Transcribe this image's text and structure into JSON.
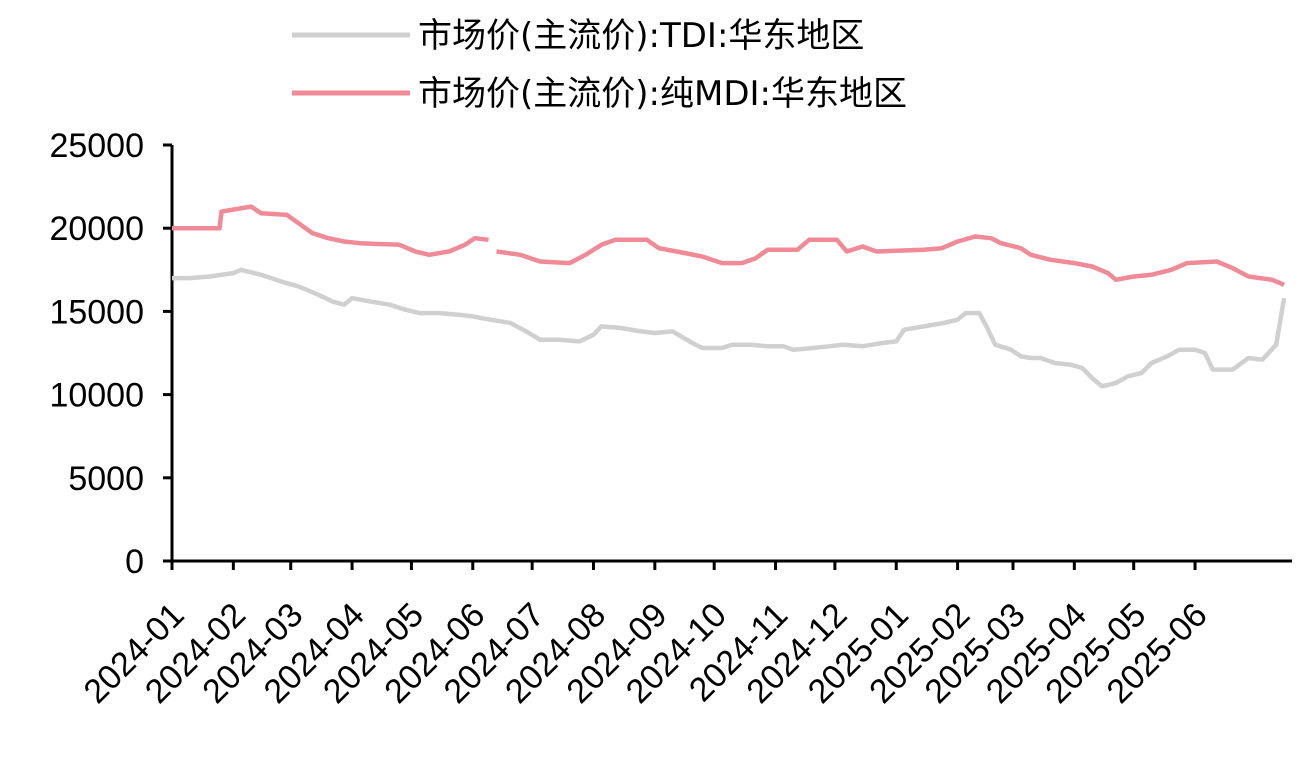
{
  "chart_data": {
    "type": "line",
    "ylim": [
      0,
      25000
    ],
    "yticks": [
      0,
      5000,
      10000,
      15000,
      20000,
      25000
    ],
    "x_ticks": [
      "2024-01",
      "2024-02",
      "2024-03",
      "2024-04",
      "2024-05",
      "2024-06",
      "2024-07",
      "2024-08",
      "2024-09",
      "2024-10",
      "2024-11",
      "2024-12",
      "2025-01",
      "2025-02",
      "2025-03",
      "2025-04",
      "2025-05",
      "2025-06"
    ],
    "legend_position": "top",
    "grid": false,
    "series": [
      {
        "name": "市场价(主流价):TDI:华东地区",
        "color": "#d0d0d0",
        "points": [
          [
            "2024-01-01",
            17000
          ],
          [
            "2024-01-10",
            17000
          ],
          [
            "2024-01-20",
            17100
          ],
          [
            "2024-02-01",
            17300
          ],
          [
            "2024-02-05",
            17500
          ],
          [
            "2024-02-15",
            17200
          ],
          [
            "2024-02-25",
            16800
          ],
          [
            "2024-03-05",
            16500
          ],
          [
            "2024-03-15",
            16000
          ],
          [
            "2024-03-22",
            15600
          ],
          [
            "2024-03-28",
            15400
          ],
          [
            "2024-04-01",
            15800
          ],
          [
            "2024-04-10",
            15600
          ],
          [
            "2024-04-20",
            15400
          ],
          [
            "2024-04-28",
            15100
          ],
          [
            "2024-05-05",
            14900
          ],
          [
            "2024-05-15",
            14900
          ],
          [
            "2024-05-25",
            14800
          ],
          [
            "2024-06-01",
            14700
          ],
          [
            "2024-06-10",
            14500
          ],
          [
            "2024-06-20",
            14300
          ],
          [
            "2024-06-28",
            13800
          ],
          [
            "2024-07-05",
            13300
          ],
          [
            "2024-07-15",
            13300
          ],
          [
            "2024-07-25",
            13200
          ],
          [
            "2024-08-01",
            13600
          ],
          [
            "2024-08-05",
            14100
          ],
          [
            "2024-08-15",
            14000
          ],
          [
            "2024-08-25",
            13800
          ],
          [
            "2024-09-01",
            13700
          ],
          [
            "2024-09-10",
            13800
          ],
          [
            "2024-09-20",
            13100
          ],
          [
            "2024-09-25",
            12800
          ],
          [
            "2024-10-05",
            12800
          ],
          [
            "2024-10-10",
            13000
          ],
          [
            "2024-10-20",
            13000
          ],
          [
            "2024-10-28",
            12900
          ],
          [
            "2024-11-05",
            12900
          ],
          [
            "2024-11-10",
            12700
          ],
          [
            "2024-11-20",
            12800
          ],
          [
            "2024-11-28",
            12900
          ],
          [
            "2024-12-05",
            13000
          ],
          [
            "2024-12-15",
            12900
          ],
          [
            "2024-12-25",
            13100
          ],
          [
            "2025-01-01",
            13200
          ],
          [
            "2025-01-05",
            13900
          ],
          [
            "2025-01-15",
            14100
          ],
          [
            "2025-01-25",
            14300
          ],
          [
            "2025-02-01",
            14500
          ],
          [
            "2025-02-05",
            14900
          ],
          [
            "2025-02-12",
            14900
          ],
          [
            "2025-02-16",
            14000
          ],
          [
            "2025-02-20",
            13000
          ],
          [
            "2025-02-28",
            12700
          ],
          [
            "2025-03-05",
            12300
          ],
          [
            "2025-03-10",
            12200
          ],
          [
            "2025-03-15",
            12200
          ],
          [
            "2025-03-22",
            11900
          ],
          [
            "2025-03-30",
            11800
          ],
          [
            "2025-04-05",
            11600
          ],
          [
            "2025-04-10",
            11000
          ],
          [
            "2025-04-15",
            10500
          ],
          [
            "2025-04-22",
            10700
          ],
          [
            "2025-04-28",
            11100
          ],
          [
            "2025-05-05",
            11300
          ],
          [
            "2025-05-10",
            11900
          ],
          [
            "2025-05-18",
            12300
          ],
          [
            "2025-05-24",
            12700
          ],
          [
            "2025-06-01",
            12700
          ],
          [
            "2025-06-06",
            12500
          ],
          [
            "2025-06-10",
            11500
          ],
          [
            "2025-06-20",
            11500
          ],
          [
            "2025-06-28",
            12200
          ],
          [
            "2025-07-05",
            12100
          ],
          [
            "2025-07-12",
            13000
          ],
          [
            "2025-07-16",
            15800
          ]
        ]
      },
      {
        "name": "市场价(主流价):纯MDI:华东地区",
        "color": "#f08a96",
        "points": [
          [
            "2024-01-01",
            20000
          ],
          [
            "2024-01-25",
            20000
          ],
          [
            "2024-01-26",
            21000
          ],
          [
            "2024-02-05",
            21200
          ],
          [
            "2024-02-10",
            21300
          ],
          [
            "2024-02-15",
            20900
          ],
          [
            "2024-02-28",
            20800
          ],
          [
            "2024-03-05",
            20300
          ],
          [
            "2024-03-12",
            19700
          ],
          [
            "2024-03-20",
            19400
          ],
          [
            "2024-03-28",
            19200
          ],
          [
            "2024-04-05",
            19100
          ],
          [
            "2024-04-25",
            19000
          ],
          [
            "2024-05-03",
            18600
          ],
          [
            "2024-05-10",
            18400
          ],
          [
            "2024-05-20",
            18600
          ],
          [
            "2024-05-28",
            19000
          ],
          [
            "2024-06-02",
            19400
          ],
          [
            "2024-06-09",
            19300
          ],
          null,
          [
            "2024-06-13",
            18600
          ],
          [
            "2024-06-25",
            18400
          ],
          [
            "2024-07-05",
            18000
          ],
          [
            "2024-07-20",
            17900
          ],
          [
            "2024-07-28",
            18400
          ],
          [
            "2024-08-05",
            19000
          ],
          [
            "2024-08-12",
            19300
          ],
          [
            "2024-08-28",
            19300
          ],
          [
            "2024-09-03",
            18800
          ],
          [
            "2024-09-12",
            18600
          ],
          [
            "2024-09-25",
            18300
          ],
          [
            "2024-10-05",
            17900
          ],
          [
            "2024-10-15",
            17900
          ],
          [
            "2024-10-22",
            18200
          ],
          [
            "2024-10-28",
            18700
          ],
          [
            "2024-11-12",
            18700
          ],
          [
            "2024-11-18",
            19300
          ],
          [
            "2024-12-02",
            19300
          ],
          [
            "2024-12-07",
            18600
          ],
          [
            "2024-12-15",
            18900
          ],
          [
            "2024-12-22",
            18600
          ],
          [
            "2025-01-15",
            18700
          ],
          [
            "2025-01-24",
            18800
          ],
          [
            "2025-02-01",
            19200
          ],
          [
            "2025-02-10",
            19500
          ],
          [
            "2025-02-18",
            19400
          ],
          [
            "2025-02-23",
            19100
          ],
          [
            "2025-03-05",
            18800
          ],
          [
            "2025-03-10",
            18400
          ],
          [
            "2025-03-20",
            18100
          ],
          [
            "2025-04-01",
            17900
          ],
          [
            "2025-04-10",
            17700
          ],
          [
            "2025-04-18",
            17300
          ],
          [
            "2025-04-22",
            16900
          ],
          [
            "2025-05-01",
            17100
          ],
          [
            "2025-05-10",
            17200
          ],
          [
            "2025-05-20",
            17500
          ],
          [
            "2025-05-28",
            17900
          ],
          [
            "2025-06-12",
            18000
          ],
          [
            "2025-06-20",
            17600
          ],
          [
            "2025-06-28",
            17100
          ],
          [
            "2025-07-10",
            16900
          ],
          [
            "2025-07-16",
            16600
          ]
        ]
      }
    ]
  }
}
